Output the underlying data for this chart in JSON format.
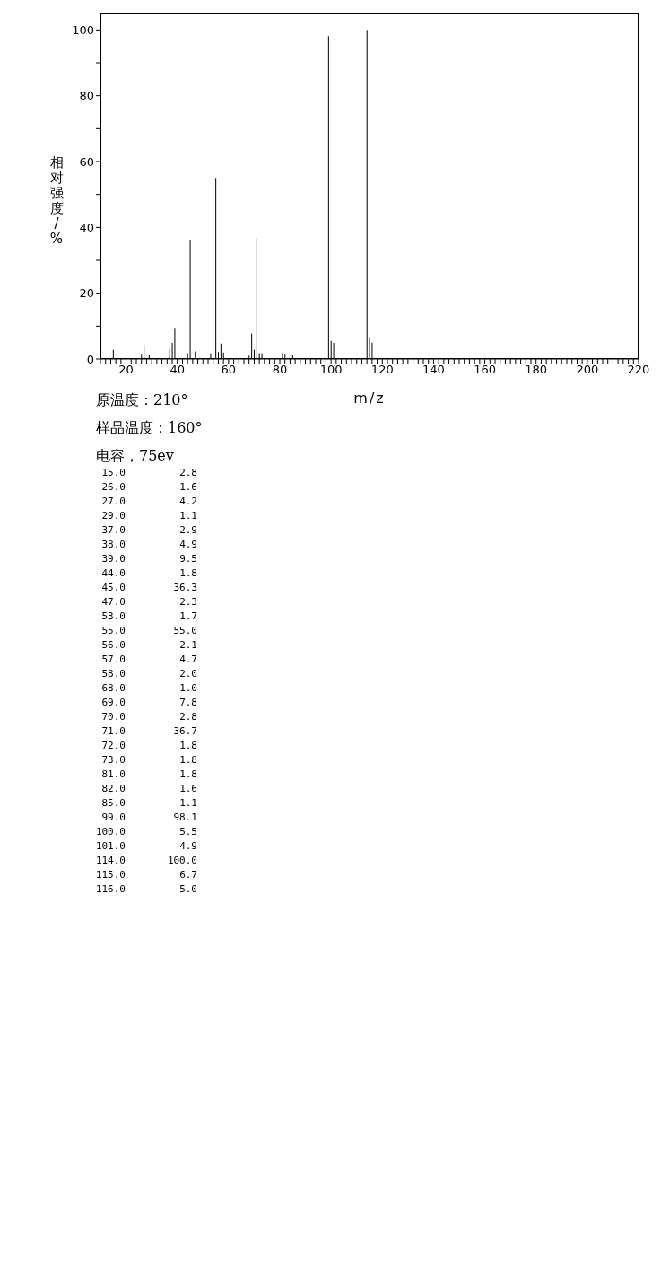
{
  "chart_data": [
    {
      "type": "bar",
      "xlabel": "m/z",
      "ylabel": "相对强度/%",
      "x": [
        15,
        26,
        27,
        29,
        37,
        38,
        39,
        44,
        45,
        47,
        53,
        55,
        56,
        57,
        58,
        68,
        69,
        70,
        71,
        72,
        73,
        81,
        82,
        85,
        99,
        100,
        101,
        114,
        115,
        116
      ],
      "values": [
        2.8,
        1.6,
        4.2,
        1.1,
        2.9,
        4.9,
        9.5,
        1.8,
        36.3,
        2.3,
        1.7,
        55.0,
        2.1,
        4.7,
        2.0,
        1.0,
        7.8,
        2.8,
        36.7,
        1.8,
        1.8,
        1.8,
        1.6,
        1.1,
        98.1,
        5.5,
        4.9,
        100.0,
        6.7,
        5.0
      ],
      "color": "#000000",
      "xlim": [
        10,
        220
      ],
      "xticks": [
        {
          "value": 10,
          "label": null
        },
        {
          "value": 12,
          "label": null
        },
        {
          "value": 14,
          "label": null
        },
        {
          "value": 16,
          "label": null
        },
        {
          "value": 18,
          "label": null
        },
        20,
        {
          "value": 22,
          "label": null
        },
        {
          "value": 24,
          "label": null
        },
        {
          "value": 26,
          "label": null
        },
        {
          "value": 28,
          "label": null
        },
        {
          "value": 30,
          "label": null
        },
        {
          "value": 32,
          "label": null
        },
        {
          "value": 34,
          "label": null
        },
        {
          "value": 36,
          "label": null
        },
        {
          "value": 38,
          "label": null
        },
        40,
        {
          "value": 42,
          "label": null
        },
        {
          "value": 44,
          "label": null
        },
        {
          "value": 46,
          "label": null
        },
        {
          "value": 48,
          "label": null
        },
        {
          "value": 50,
          "label": null
        },
        {
          "value": 52,
          "label": null
        },
        {
          "value": 54,
          "label": null
        },
        {
          "value": 56,
          "label": null
        },
        {
          "value": 58,
          "label": null
        },
        60,
        {
          "value": 62,
          "label": null
        },
        {
          "value": 64,
          "label": null
        },
        {
          "value": 66,
          "label": null
        },
        {
          "value": 68,
          "label": null
        },
        {
          "value": 70,
          "label": null
        },
        {
          "value": 72,
          "label": null
        },
        {
          "value": 74,
          "label": null
        },
        {
          "value": 76,
          "label": null
        },
        {
          "value": 78,
          "label": null
        },
        80,
        {
          "value": 82,
          "label": null
        },
        {
          "value": 84,
          "label": null
        },
        {
          "value": 86,
          "label": null
        },
        {
          "value": 88,
          "label": null
        },
        {
          "value": 90,
          "label": null
        },
        {
          "value": 92,
          "label": null
        },
        {
          "value": 94,
          "label": null
        },
        {
          "value": 96,
          "label": null
        },
        {
          "value": 98,
          "label": null
        },
        100,
        {
          "value": 102,
          "label": null
        },
        {
          "value": 104,
          "label": null
        },
        {
          "value": 106,
          "label": null
        },
        {
          "value": 108,
          "label": null
        },
        {
          "value": 110,
          "label": null
        },
        {
          "value": 112,
          "label": null
        },
        {
          "value": 114,
          "label": null
        },
        {
          "value": 116,
          "label": null
        },
        {
          "value": 118,
          "label": null
        },
        120,
        {
          "value": 122,
          "label": null
        },
        {
          "value": 124,
          "label": null
        },
        {
          "value": 126,
          "label": null
        },
        {
          "value": 128,
          "label": null
        },
        {
          "value": 130,
          "label": null
        },
        {
          "value": 132,
          "label": null
        },
        {
          "value": 134,
          "label": null
        },
        {
          "value": 136,
          "label": null
        },
        {
          "value": 138,
          "label": null
        },
        140,
        {
          "value": 142,
          "label": null
        },
        {
          "value": 144,
          "label": null
        },
        {
          "value": 146,
          "label": null
        },
        {
          "value": 148,
          "label": null
        },
        {
          "value": 150,
          "label": null
        },
        {
          "value": 152,
          "label": null
        },
        {
          "value": 154,
          "label": null
        },
        {
          "value": 156,
          "label": null
        },
        {
          "value": 158,
          "label": null
        },
        160,
        {
          "value": 162,
          "label": null
        },
        {
          "value": 164,
          "label": null
        },
        {
          "value": 166,
          "label": null
        },
        {
          "value": 168,
          "label": null
        },
        {
          "value": 170,
          "label": null
        },
        {
          "value": 172,
          "label": null
        },
        {
          "value": 174,
          "label": null
        },
        {
          "value": 176,
          "label": null
        },
        {
          "value": 178,
          "label": null
        },
        180,
        {
          "value": 182,
          "label": null
        },
        {
          "value": 184,
          "label": null
        },
        {
          "value": 186,
          "label": null
        },
        {
          "value": 188,
          "label": null
        },
        {
          "value": 190,
          "label": null
        },
        {
          "value": 192,
          "label": null
        },
        {
          "value": 194,
          "label": null
        },
        {
          "value": 196,
          "label": null
        },
        {
          "value": 198,
          "label": null
        },
        200,
        {
          "value": 202,
          "label": null
        },
        {
          "value": 204,
          "label": null
        },
        {
          "value": 206,
          "label": null
        },
        {
          "value": 208,
          "label": null
        },
        {
          "value": 210,
          "label": null
        },
        {
          "value": 212,
          "label": null
        },
        {
          "value": 214,
          "label": null
        },
        {
          "value": 216,
          "label": null
        },
        {
          "value": 218,
          "label": null
        },
        220
      ],
      "ylim": [
        0,
        105
      ],
      "yticks": [
        0,
        {
          "value": 10,
          "label": null
        },
        20,
        {
          "value": 30,
          "label": null
        },
        40,
        {
          "value": 50,
          "label": null
        },
        60,
        {
          "value": 70,
          "label": null
        },
        80,
        {
          "value": 90,
          "label": null
        },
        100
      ],
      "annotations": [
        "原温度：210°",
        "样品温度：160°",
        "电容，75ev"
      ],
      "grid": false,
      "legend": false
    },
    {
      "type": "other",
      "annotations": [
        "15.0",
        "2.8",
        "26.0",
        "1.6",
        "27.0",
        "4.2",
        "29.0",
        "1.1",
        "37.0",
        "2.9",
        "38.0",
        "4.9",
        "39.0",
        "9.5",
        "44.0",
        "1.8",
        "45.0",
        "36.3",
        "47.0",
        "2.3",
        "53.0",
        "1.7",
        "55.0",
        "55.0",
        "56.0",
        "2.1",
        "57.0",
        "4.7",
        "58.0",
        "2.0",
        "68.0",
        "1.0",
        "69.0",
        "7.8",
        "70.0",
        "2.8",
        "71.0",
        "36.7",
        "72.0",
        "1.8",
        "73.0",
        "1.8",
        "81.0",
        "1.8",
        "82.0",
        "1.6",
        "85.0",
        "1.1",
        "99.0",
        "98.1",
        "100.0",
        "5.5",
        "101.0",
        "4.9",
        "114.0",
        "100.0",
        "115.0",
        "6.7",
        "116.0",
        "5.0"
      ]
    }
  ]
}
